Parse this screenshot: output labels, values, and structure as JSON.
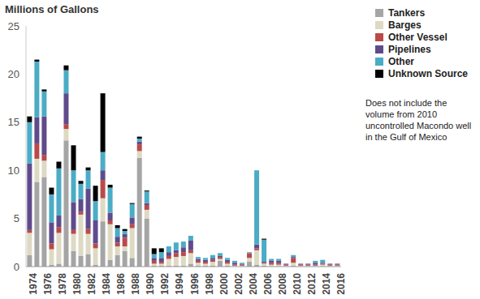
{
  "chart_data": {
    "type": "bar",
    "y_label": "Millions of Gallons",
    "annotation": "Does not include the volume from 2010 uncontrolled Macondo well in the Gulf of Mexico",
    "stacked": true,
    "grid": false,
    "legend": "top-right",
    "ylim": [
      0,
      25
    ],
    "yticks": [
      0,
      5,
      10,
      15,
      20,
      25
    ],
    "categories": [
      "1974",
      null,
      "1976",
      null,
      "1978",
      null,
      "1980",
      null,
      "1982",
      null,
      "1984",
      null,
      "1986",
      null,
      "1988",
      null,
      "1990",
      null,
      "1992",
      null,
      "1994",
      null,
      "1996",
      null,
      "1998",
      null,
      "2000",
      null,
      "2002",
      null,
      "2004",
      null,
      "2006",
      null,
      "2008",
      null,
      "2010",
      null,
      "2012",
      null,
      "2014",
      null,
      "2016"
    ],
    "series": [
      {
        "name": "Tankers",
        "color": "#a5a5a5",
        "values": [
          1.2,
          8.8,
          9.3,
          0.2,
          0.3,
          13.1,
          1.6,
          1.1,
          1.3,
          0.2,
          4.7,
          0.7,
          1.2,
          1.6,
          0.9,
          11.3,
          5.0,
          0.1,
          0.1,
          0.1,
          0.1,
          0.1,
          0.3,
          0.1,
          0.1,
          0.1,
          0.6,
          0.1,
          0,
          0,
          0.5,
          0.2,
          0.1,
          0,
          0,
          0,
          0.1,
          0,
          0,
          0,
          0,
          0,
          0
        ]
      },
      {
        "name": "Barges",
        "color": "#ddd9c3",
        "values": [
          2.3,
          2.4,
          1.7,
          1.6,
          3.2,
          1.2,
          1.8,
          4.3,
          2.1,
          1.7,
          2.4,
          3.7,
          0.9,
          0.5,
          3.1,
          0.7,
          0.9,
          0.2,
          0.2,
          0.7,
          0.9,
          1.0,
          1.1,
          0.3,
          0.2,
          0.4,
          0.2,
          0.2,
          0.1,
          0.1,
          0.4,
          1.5,
          0.2,
          0.2,
          0.2,
          0.1,
          0.3,
          0.1,
          0.1,
          0.1,
          0.2,
          0.1,
          0.1
        ]
      },
      {
        "name": "Other Vessel",
        "color": "#b94a48",
        "values": [
          0.3,
          1.6,
          0.6,
          0.6,
          0.6,
          0.5,
          0.4,
          0.3,
          0.5,
          0.5,
          1.9,
          0.4,
          0.4,
          0.9,
          0.4,
          0.7,
          0.5,
          0.3,
          0.2,
          0.3,
          0.4,
          0.4,
          0.3,
          0.2,
          0.2,
          0.2,
          0.2,
          0.2,
          0.1,
          0.1,
          0.5,
          0.2,
          0.1,
          0.2,
          0.2,
          0.1,
          0.5,
          0.1,
          0.1,
          0.1,
          0.1,
          0.1,
          0.1
        ]
      },
      {
        "name": "Pipelines",
        "color": "#5f4b8b",
        "values": [
          6.9,
          2.7,
          4.0,
          2.2,
          1.2,
          3.2,
          2.9,
          1.3,
          4.2,
          2.4,
          1.0,
          0.8,
          0.6,
          0.4,
          0.7,
          0.3,
          0.2,
          0.3,
          0.4,
          0.4,
          0.3,
          0.5,
          1.0,
          0.2,
          0.2,
          0.2,
          0.1,
          0.2,
          0.2,
          0.1,
          0,
          0.4,
          0.1,
          0.2,
          0.2,
          0.1,
          0.1,
          0.1,
          0.1,
          0.2,
          0.1,
          0.1,
          0.1
        ]
      },
      {
        "name": "Other",
        "color": "#4bacc6",
        "values": [
          4.3,
          5.8,
          2.6,
          2.9,
          4.9,
          2.4,
          3.3,
          1.6,
          1.9,
          2.0,
          1.9,
          2.6,
          0.9,
          0.3,
          1.4,
          0.3,
          1.2,
          0.4,
          0.6,
          0.6,
          0.8,
          0.6,
          0.5,
          0.2,
          0.2,
          0.3,
          0.3,
          0.2,
          0.2,
          0.1,
          0.1,
          7.7,
          2.3,
          0.2,
          0.2,
          0,
          0.2,
          0,
          0,
          0.2,
          0.3,
          0,
          0
        ]
      },
      {
        "name": "Unknown Source",
        "color": "#000000",
        "values": [
          0.6,
          0.2,
          0.2,
          0.7,
          0.7,
          0.5,
          2.6,
          0.3,
          0.3,
          1.6,
          6.1,
          0.3,
          0.3,
          0.2,
          0.1,
          0.2,
          0.1,
          0.6,
          0.4,
          0,
          0,
          0,
          0,
          0,
          0,
          0,
          0,
          0,
          0,
          0,
          0,
          0,
          0.1,
          0,
          0,
          0,
          0,
          0,
          0,
          0,
          0,
          0,
          0
        ]
      }
    ]
  }
}
